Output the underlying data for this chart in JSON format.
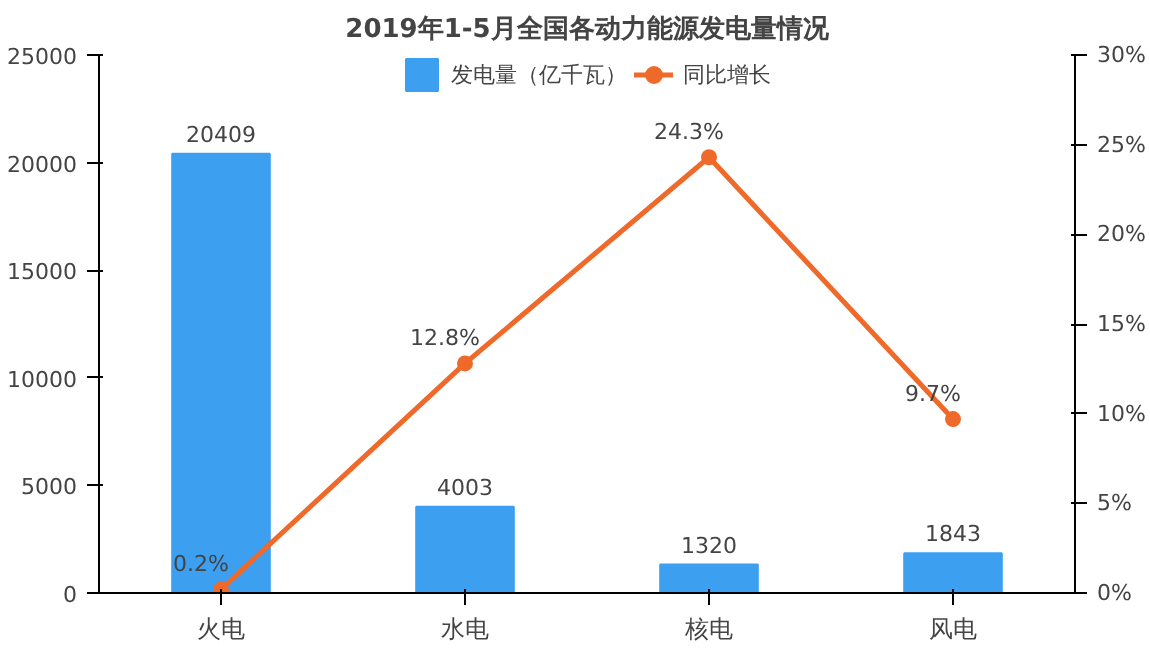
{
  "chart_data": {
    "type": "bar",
    "title": "2019年1-5月全国各动力能源发电量情况",
    "categories": [
      "火电",
      "水电",
      "核电",
      "风电"
    ],
    "series": [
      {
        "name": "发电量（亿千瓦）",
        "color": "#3d9ff0",
        "values": [
          20409,
          4003,
          1320,
          1843
        ],
        "value_labels": [
          "20409",
          "4003",
          "1320",
          "1843"
        ]
      },
      {
        "name": "同比增长",
        "type": "line",
        "axis": "y2",
        "color": "#ef6a2a",
        "marker": "circle",
        "values": [
          0.2,
          12.8,
          24.3,
          9.7
        ],
        "value_labels": [
          "0.2%",
          "12.8%",
          "24.3%",
          "9.7%"
        ]
      }
    ],
    "ylim": [
      0,
      25000
    ],
    "yticks": [
      0,
      5000,
      10000,
      15000,
      20000,
      25000
    ],
    "y2lim": [
      0,
      30
    ],
    "y2ticks": [
      {
        "value": 0,
        "label": "0%"
      },
      {
        "value": 5,
        "label": "5%"
      },
      {
        "value": 10,
        "label": "10%"
      },
      {
        "value": 15,
        "label": "15%"
      },
      {
        "value": 20,
        "label": "20%"
      },
      {
        "value": 25,
        "label": "25%"
      },
      {
        "value": 30,
        "label": "30%"
      }
    ],
    "grid": false,
    "legend": "top"
  }
}
